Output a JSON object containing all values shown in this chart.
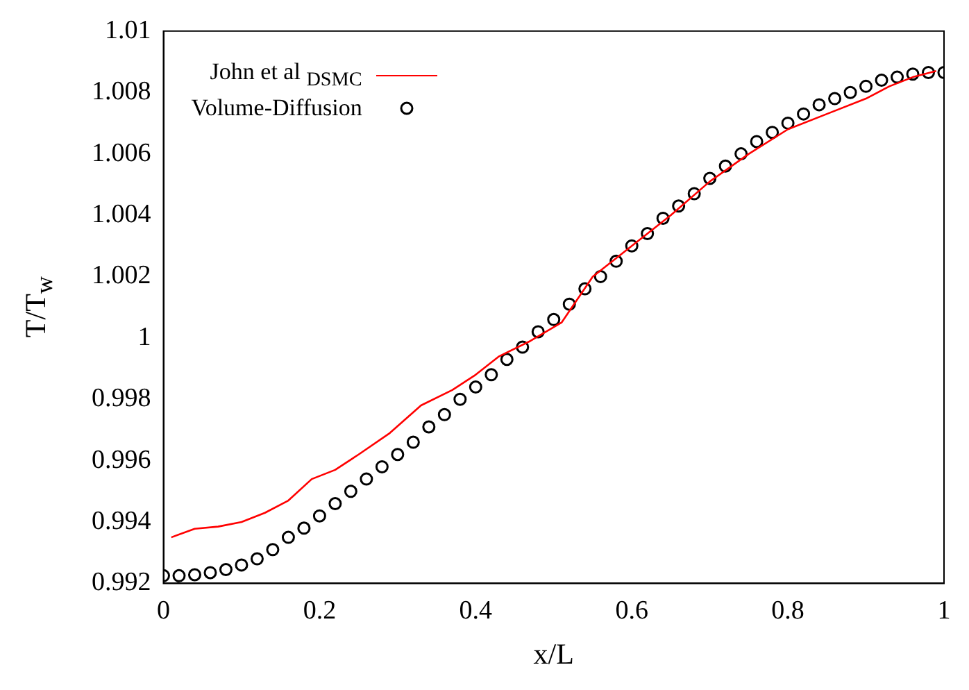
{
  "chart_data": {
    "type": "line",
    "xlabel": "x/L",
    "ylabel": "T/T$_{w}$",
    "xlim": [
      0,
      1
    ],
    "xticks": [
      0,
      0.2,
      0.4,
      0.6,
      0.8,
      1
    ],
    "ylim": [
      0.992,
      1.01
    ],
    "yticks": [
      0.992,
      0.994,
      0.996,
      0.998,
      1,
      1.002,
      1.004,
      1.006,
      1.008,
      1.01
    ],
    "grid": false,
    "legend": "top left",
    "series": [
      {
        "name": "John et al $_{DSMC}$",
        "type": "line",
        "color": "#ff0000",
        "marker": "none",
        "line_style": "solid",
        "x": [
          0.01,
          0.04,
          0.07,
          0.1,
          0.13,
          0.16,
          0.19,
          0.22,
          0.25,
          0.29,
          0.33,
          0.37,
          0.4,
          0.43,
          0.47,
          0.51,
          0.55,
          0.6,
          0.65,
          0.7,
          0.75,
          0.8,
          0.85,
          0.9,
          0.93,
          0.96,
          0.99
        ],
        "values": [
          0.9935,
          0.99378,
          0.99385,
          0.994,
          0.9943,
          0.9947,
          0.9954,
          0.9957,
          0.9962,
          0.9969,
          0.9978,
          0.9983,
          0.9988,
          0.9994,
          0.9999,
          1.0005,
          1.002,
          1.003,
          1.004,
          1.0051,
          1.006,
          1.0068,
          1.0073,
          1.0078,
          1.0082,
          1.0085,
          1.0087
        ]
      },
      {
        "name": "Volume-Diffusion",
        "type": "scatter",
        "color": "#000000",
        "marker": "circle",
        "x": [
          0,
          0.02,
          0.04,
          0.06,
          0.08,
          0.1,
          0.12,
          0.14,
          0.16,
          0.18,
          0.2,
          0.22,
          0.24,
          0.26,
          0.28,
          0.3,
          0.32,
          0.34,
          0.36,
          0.38,
          0.4,
          0.42,
          0.44,
          0.46,
          0.48,
          0.5,
          0.52,
          0.54,
          0.56,
          0.58,
          0.6,
          0.62,
          0.64,
          0.66,
          0.68,
          0.7,
          0.72,
          0.74,
          0.76,
          0.78,
          0.8,
          0.82,
          0.84,
          0.86,
          0.88,
          0.9,
          0.92,
          0.94,
          0.96,
          0.98,
          1
        ],
        "values": [
          0.99225,
          0.99225,
          0.99228,
          0.99235,
          0.99245,
          0.9926,
          0.9928,
          0.9931,
          0.9935,
          0.9938,
          0.9942,
          0.9946,
          0.995,
          0.9954,
          0.9958,
          0.9962,
          0.9966,
          0.9971,
          0.9975,
          0.998,
          0.9984,
          0.9988,
          0.9993,
          0.9997,
          1.0002,
          1.0006,
          1.0011,
          1.0016,
          1.002,
          1.0025,
          1.003,
          1.0034,
          1.0039,
          1.0043,
          1.0047,
          1.0052,
          1.0056,
          1.006,
          1.0064,
          1.0067,
          1.007,
          1.0073,
          1.0076,
          1.0078,
          1.008,
          1.0082,
          1.0084,
          1.0085,
          1.0086,
          1.00865,
          1.00865
        ]
      }
    ]
  }
}
